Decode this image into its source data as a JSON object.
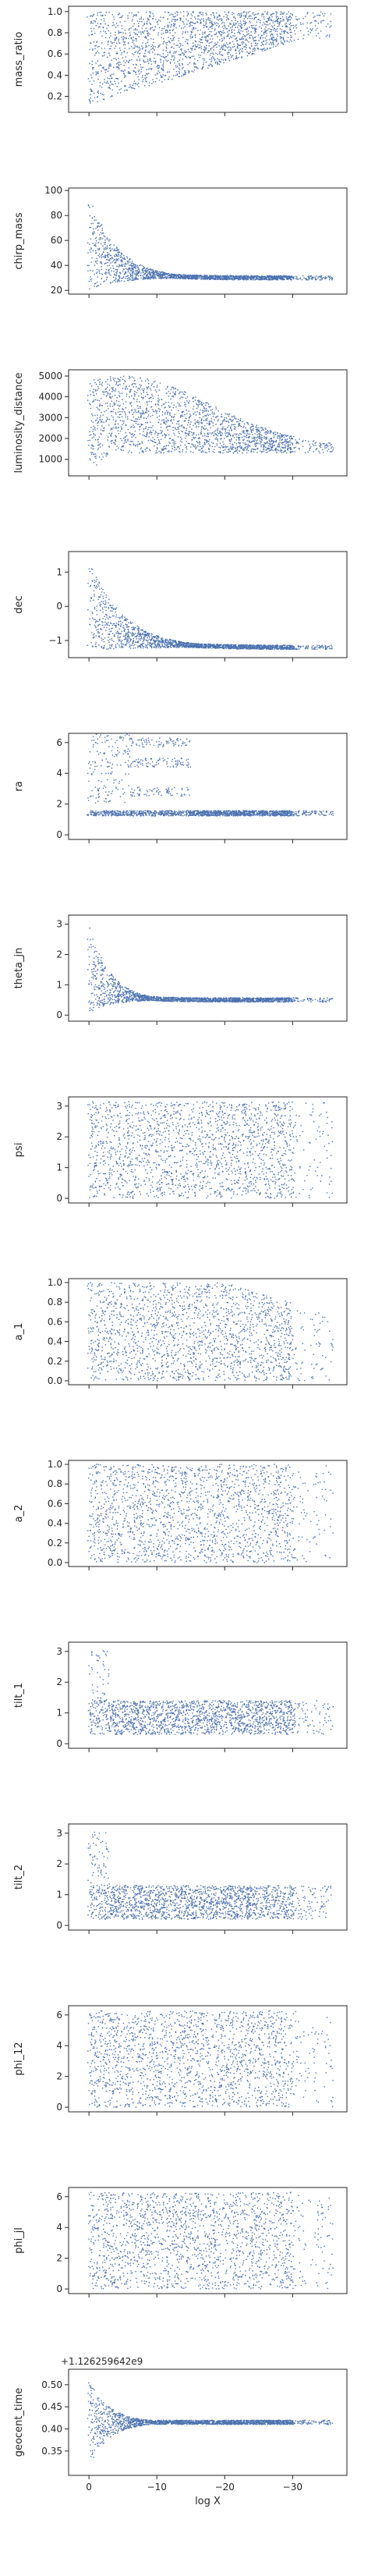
{
  "chart_data": {
    "type": "scatter",
    "shared_x": {
      "xlabel": "log X",
      "xlim": [
        3,
        -38
      ],
      "xticks": [
        0,
        -10,
        -20,
        -30
      ],
      "xtick_labels": [
        "0",
        "−10",
        "−20",
        "−30"
      ]
    },
    "point_color": "#4c72b0",
    "grid": false,
    "panels": [
      {
        "ylabel": "mass_ratio",
        "ylim": [
          0.05,
          1.05
        ],
        "yticks": [
          0.2,
          0.4,
          0.6,
          0.8,
          1.0
        ],
        "ytick_labels": [
          "0.2",
          "0.4",
          "0.6",
          "0.8",
          "1.0"
        ],
        "shape": "wedge",
        "floor": 0.12,
        "ceil": 1.0,
        "ceil_at_start": 0.75
      },
      {
        "ylabel": "chirp_mass",
        "ylim": [
          17,
          102
        ],
        "yticks": [
          20,
          40,
          60,
          80,
          100
        ],
        "ytick_labels": [
          "20",
          "40",
          "60",
          "80",
          "100"
        ],
        "shape": "decay",
        "start_lo": 20,
        "start_hi": 100,
        "converge": 30,
        "half_life": 4
      },
      {
        "ylabel": "luminosity_distance",
        "ylim": [
          200,
          5300
        ],
        "yticks": [
          1000,
          2000,
          3000,
          4000,
          5000
        ],
        "ytick_labels": [
          "1000",
          "2000",
          "3000",
          "4000",
          "5000"
        ],
        "shape": "bulge",
        "base": 1600,
        "top": 5000,
        "peak_at": 5,
        "low_start": 600
      },
      {
        "ylabel": "dec",
        "ylim": [
          -1.5,
          1.6
        ],
        "yticks": [
          -1,
          0,
          1
        ],
        "ytick_labels": [
          "−1",
          "0",
          "1"
        ],
        "shape": "decay",
        "start_lo": -1.3,
        "start_hi": 1.4,
        "converge": -1.2,
        "half_life": 5
      },
      {
        "ylabel": "ra",
        "ylim": [
          -0.3,
          6.6
        ],
        "yticks": [
          0,
          2,
          4,
          6
        ],
        "ytick_labels": [
          "0",
          "2",
          "4",
          "6"
        ],
        "shape": "bands",
        "band_center": 1.4,
        "side_bands": [
          2.8,
          4.7,
          6.0
        ]
      },
      {
        "ylabel": "theta_jn",
        "ylim": [
          -0.2,
          3.3
        ],
        "yticks": [
          0,
          1,
          2,
          3
        ],
        "ytick_labels": [
          "0",
          "1",
          "2",
          "3"
        ],
        "shape": "decay",
        "start_lo": 0.05,
        "start_hi": 3.1,
        "converge": 0.5,
        "half_life": 3
      },
      {
        "ylabel": "psi",
        "ylim": [
          -0.15,
          3.3
        ],
        "yticks": [
          0,
          1,
          2,
          3
        ],
        "ytick_labels": [
          "0",
          "1",
          "2",
          "3"
        ],
        "shape": "uniform",
        "lo": 0,
        "hi": 3.14
      },
      {
        "ylabel": "a_1",
        "ylim": [
          -0.04,
          1.04
        ],
        "yticks": [
          0.0,
          0.2,
          0.4,
          0.6,
          0.8,
          1.0
        ],
        "ytick_labels": [
          "0.0",
          "0.2",
          "0.4",
          "0.6",
          "0.8",
          "1.0"
        ],
        "shape": "taper",
        "lo": 0,
        "hi": 1.0,
        "end_hi": 0.75
      },
      {
        "ylabel": "a_2",
        "ylim": [
          -0.04,
          1.04
        ],
        "yticks": [
          0.0,
          0.2,
          0.4,
          0.6,
          0.8,
          1.0
        ],
        "ytick_labels": [
          "0.0",
          "0.2",
          "0.4",
          "0.6",
          "0.8",
          "1.0"
        ],
        "shape": "uniform",
        "lo": 0,
        "hi": 1.0
      },
      {
        "ylabel": "tilt_1",
        "ylim": [
          -0.15,
          3.3
        ],
        "yticks": [
          0,
          1,
          2,
          3
        ],
        "ytick_labels": [
          "0",
          "1",
          "2",
          "3"
        ],
        "shape": "spike",
        "band_lo": 0.3,
        "band_hi": 1.4,
        "spike_hi": 3.05
      },
      {
        "ylabel": "tilt_2",
        "ylim": [
          -0.15,
          3.3
        ],
        "yticks": [
          0,
          1,
          2,
          3
        ],
        "ytick_labels": [
          "0",
          "1",
          "2",
          "3"
        ],
        "shape": "spike",
        "band_lo": 0.2,
        "band_hi": 1.3,
        "spike_hi": 3.05
      },
      {
        "ylabel": "phi_12",
        "ylim": [
          -0.3,
          6.6
        ],
        "yticks": [
          0,
          2,
          4,
          6
        ],
        "ytick_labels": [
          "0",
          "2",
          "4",
          "6"
        ],
        "shape": "uniform",
        "lo": 0,
        "hi": 6.28
      },
      {
        "ylabel": "phi_jl",
        "ylim": [
          -0.3,
          6.6
        ],
        "yticks": [
          0,
          2,
          4,
          6
        ],
        "ytick_labels": [
          "0",
          "2",
          "4",
          "6"
        ],
        "shape": "uniform",
        "lo": 0,
        "hi": 6.28
      },
      {
        "ylabel": "geocent_time",
        "ylim": [
          0.295,
          0.535
        ],
        "yticks": [
          0.35,
          0.4,
          0.45,
          0.5
        ],
        "ytick_labels": [
          "0.35",
          "0.40",
          "0.45",
          "0.50"
        ],
        "offset_label": "+1.126259642e9",
        "shape": "decay",
        "start_lo": 0.315,
        "start_hi": 0.51,
        "converge": 0.415,
        "half_life": 3
      }
    ]
  }
}
